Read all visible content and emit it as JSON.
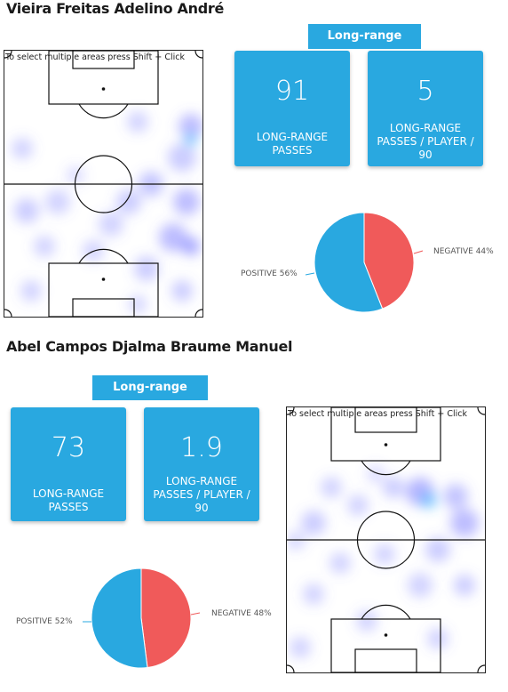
{
  "players": [
    {
      "name": "Vieira Freitas Adelino André",
      "section_button": "Long-range passes",
      "stats": [
        {
          "value": "91",
          "label": "LONG-RANGE PASSES"
        },
        {
          "value": "5",
          "label": "LONG-RANGE PASSES / PLAYER / 90"
        }
      ],
      "pitch_hint": "To select multiple areas press Shift + Click",
      "pie": {
        "positive_label": "POSITIVE 56%",
        "negative_label": "NEGATIVE 44%",
        "positive_fraction": 0.56,
        "colors": {
          "positive": "#29a8e0",
          "negative": "#f05a5a"
        }
      }
    },
    {
      "name": "Abel Campos Djalma Braume Manuel",
      "section_button": "Long-range passes",
      "stats": [
        {
          "value": "73",
          "label": "LONG-RANGE PASSES"
        },
        {
          "value": "1.9",
          "label": "LONG-RANGE PASSES / PLAYER / 90"
        }
      ],
      "pitch_hint": "To select multiple areas press Shift + Click",
      "pie": {
        "positive_label": "POSITIVE 52%",
        "negative_label": "NEGATIVE 48%",
        "positive_fraction": 0.52,
        "colors": {
          "positive": "#29a8e0",
          "negative": "#f05a5a"
        }
      }
    }
  ]
}
